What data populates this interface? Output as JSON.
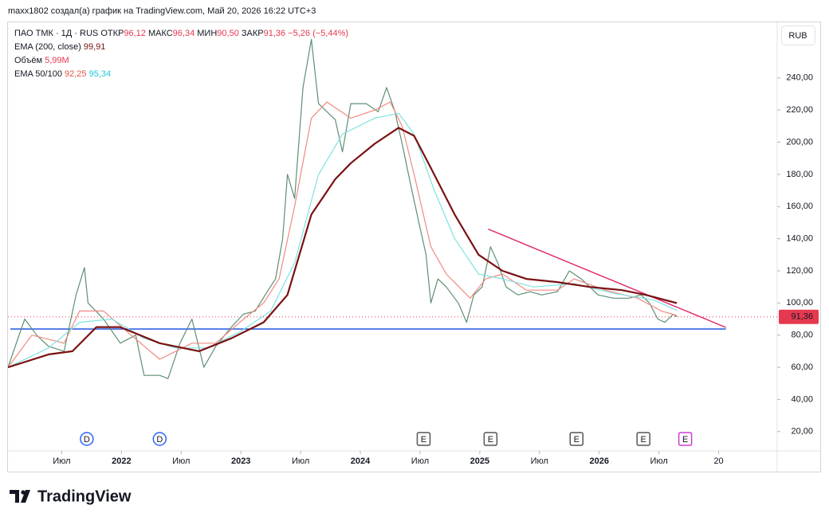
{
  "header": "maxx1802 создал(а) график на TradingView.com, Май 20, 2026 16:22 UTC+3",
  "footer": "TradingView",
  "chart_data": {
    "type": "line",
    "symbol": "ПАО ТМК · 1Д · RUS",
    "ohlc": [
      {
        "label": "ОТКР",
        "value": "96,12"
      },
      {
        "label": "МАКС",
        "value": "96,34"
      },
      {
        "label": "МИН",
        "value": "90,50"
      },
      {
        "label": "ЗАКР",
        "value": "91,36"
      }
    ],
    "change": "−5,26 (−5,44%)",
    "indicators": [
      {
        "name": "EMA (200, close)",
        "value": "99,91"
      },
      {
        "name": "Объём",
        "value": "5,99M"
      },
      {
        "name": "EMA 50/100",
        "values": [
          "92,25",
          "95,34"
        ]
      }
    ],
    "currency": "RUB",
    "xlim": [
      2021.05,
      2027.49
    ],
    "ylim": [
      8,
      273.6
    ],
    "grid": false,
    "xticks": [
      {
        "value": 2021.5,
        "label": "Июл"
      },
      2022,
      {
        "value": 2022.5,
        "label": "Июл"
      },
      2023,
      {
        "value": 2023.5,
        "label": "Июл"
      },
      2024,
      {
        "value": 2024.5,
        "label": "Июл"
      },
      2025,
      {
        "value": 2025.5,
        "label": "Июл"
      },
      2026,
      {
        "value": 2026.5,
        "label": "Июл"
      },
      {
        "value": 2027,
        "label": "20"
      }
    ],
    "yticks": [
      {
        "value": 20,
        "label": "20,00"
      },
      {
        "value": 40,
        "label": "40,00"
      },
      {
        "value": 60,
        "label": "60,00"
      },
      {
        "value": 80,
        "label": "80,00"
      },
      {
        "value": 100,
        "label": "100,00"
      },
      {
        "value": 120,
        "label": "120,00"
      },
      {
        "value": 140,
        "label": "140,00"
      },
      {
        "value": 160,
        "label": "160,00"
      },
      {
        "value": 180,
        "label": "180,00"
      },
      {
        "value": 200,
        "label": "200,00"
      },
      {
        "value": 220,
        "label": "220,00"
      },
      {
        "value": 240,
        "label": "240,00"
      }
    ],
    "series": [
      {
        "color": "#5e8f74",
        "width": 1.2,
        "x": [
          2021.05,
          2021.19,
          2021.29,
          2021.39,
          2021.52,
          2021.62,
          2021.69,
          2021.72,
          2021.85,
          2021.99,
          2022.12,
          2022.19,
          2022.32,
          2022.39,
          2022.49,
          2022.59,
          2022.69,
          2022.79,
          2022.92,
          2023.02,
          2023.12,
          2023.22,
          2023.29,
          2023.35,
          2023.39,
          2023.45,
          2023.52,
          2023.59,
          2023.65,
          2023.72,
          2023.79,
          2023.85,
          2023.92,
          2024.05,
          2024.15,
          2024.22,
          2024.29,
          2024.35,
          2024.42,
          2024.49,
          2024.55,
          2024.59,
          2024.65,
          2024.72,
          2024.82,
          2024.89,
          2024.95,
          2025.02,
          2025.09,
          2025.15,
          2025.22,
          2025.32,
          2025.42,
          2025.52,
          2025.65,
          2025.75,
          2025.85,
          2025.99,
          2026.12,
          2026.25,
          2026.35,
          2026.42,
          2026.49,
          2026.55,
          2026.62,
          2026.65
        ],
        "values": [
          60,
          90,
          80,
          73,
          70,
          105,
          122,
          100,
          90,
          75,
          80,
          55,
          55,
          53,
          75,
          90,
          60,
          73,
          85,
          93,
          95,
          107,
          115,
          140,
          180,
          165,
          234,
          264,
          224,
          219,
          214,
          194,
          224,
          224,
          219,
          234,
          219,
          199,
          174,
          150,
          130,
          100,
          115,
          110,
          100,
          88,
          105,
          110,
          135,
          125,
          110,
          105,
          107,
          105,
          107,
          120,
          115,
          105,
          103,
          103,
          105,
          100,
          90,
          88,
          93,
          91.36
        ]
      },
      {
        "color": "#f08a80",
        "width": 1.2,
        "x": [
          2021.05,
          2021.25,
          2021.52,
          2021.65,
          2021.85,
          2022.05,
          2022.32,
          2022.59,
          2022.79,
          2022.99,
          2023.19,
          2023.32,
          2023.45,
          2023.59,
          2023.72,
          2023.92,
          2024.12,
          2024.25,
          2024.35,
          2024.45,
          2024.59,
          2024.72,
          2024.92,
          2025.05,
          2025.19,
          2025.39,
          2025.65,
          2025.79,
          2026.05,
          2026.32,
          2026.52,
          2026.65
        ],
        "values": [
          60,
          80,
          75,
          95,
          95,
          82,
          65,
          75,
          75,
          88,
          100,
          115,
          160,
          215,
          225,
          215,
          220,
          225,
          210,
          180,
          135,
          118,
          103,
          115,
          118,
          108,
          108,
          115,
          108,
          103,
          95,
          92.25
        ]
      },
      {
        "color": "#7fe3e3",
        "width": 1.2,
        "x": [
          2021.05,
          2021.39,
          2021.65,
          2021.92,
          2022.19,
          2022.45,
          2022.72,
          2022.99,
          2023.25,
          2023.45,
          2023.65,
          2023.85,
          2024.12,
          2024.32,
          2024.45,
          2024.62,
          2024.79,
          2024.99,
          2025.19,
          2025.45,
          2025.79,
          2026.12,
          2026.45,
          2026.65
        ],
        "values": [
          60,
          72,
          88,
          90,
          78,
          72,
          72,
          82,
          95,
          125,
          180,
          205,
          215,
          218,
          205,
          170,
          140,
          118,
          115,
          110,
          112,
          106,
          102,
          95.34
        ]
      },
      {
        "color": "#7b1113",
        "width": 2.2,
        "x": [
          2021.05,
          2021.39,
          2021.59,
          2021.79,
          2021.99,
          2022.32,
          2022.65,
          2022.92,
          2023.19,
          2023.39,
          2023.59,
          2023.79,
          2023.92,
          2024.12,
          2024.32,
          2024.45,
          2024.59,
          2024.79,
          2024.99,
          2025.19,
          2025.39,
          2025.65,
          2025.92,
          2026.19,
          2026.39,
          2026.65
        ],
        "values": [
          60,
          68,
          70,
          85,
          85,
          75,
          70,
          78,
          88,
          105,
          155,
          177,
          187,
          199,
          209,
          204,
          184,
          155,
          130,
          120,
          115,
          113,
          110,
          108,
          105,
          99.91
        ]
      }
    ],
    "last_price": {
      "value": 91.36,
      "label": "91,36",
      "color": "#e53950"
    },
    "trendlines": [
      {
        "color": "#e0306e",
        "x": [
          2025.07,
          2027.06
        ],
        "y": [
          146,
          84.8
        ]
      },
      {
        "color": "#2455e0",
        "x": [
          2021.07,
          2027.06
        ],
        "y": [
          83.8,
          83.8
        ]
      }
    ],
    "events": [
      {
        "x": 2021.71,
        "label": "D",
        "color": "#2962ff"
      },
      {
        "x": 2022.32,
        "label": "D",
        "color": "#2962ff"
      },
      {
        "x": 2024.53,
        "label": "E",
        "color": "#555555"
      },
      {
        "x": 2025.09,
        "label": "E",
        "color": "#555555"
      },
      {
        "x": 2025.81,
        "label": "E",
        "color": "#555555"
      },
      {
        "x": 2026.37,
        "label": "E",
        "color": "#555555"
      },
      {
        "x": 2026.72,
        "label": "E",
        "color": "#d23ad6"
      }
    ]
  }
}
